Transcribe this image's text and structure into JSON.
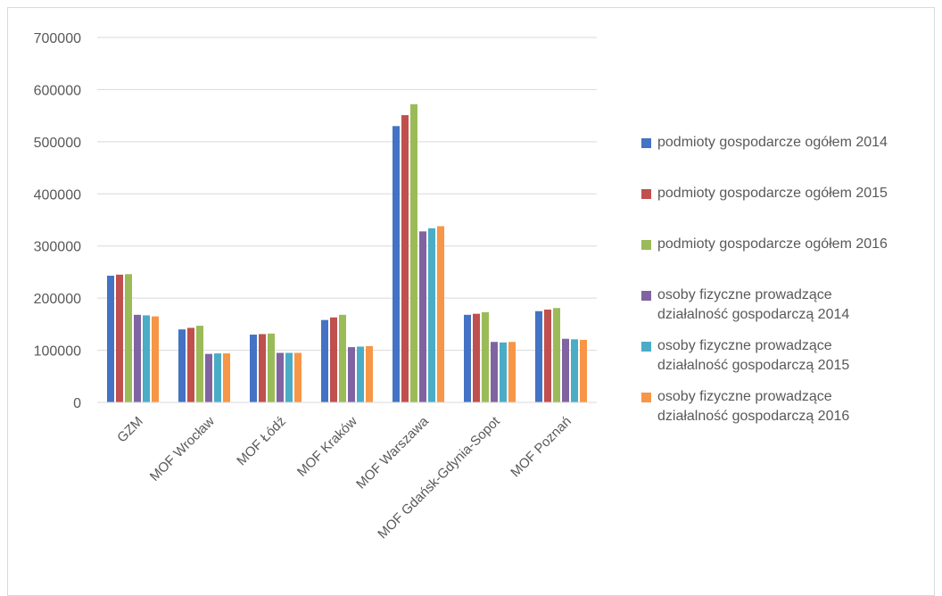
{
  "chart_data": {
    "type": "bar",
    "title": "",
    "xlabel": "",
    "ylabel": "",
    "ylim": [
      0,
      700000
    ],
    "yticks": [
      0,
      100000,
      200000,
      300000,
      400000,
      500000,
      600000,
      700000
    ],
    "ytick_labels": [
      "0",
      "100000",
      "200000",
      "300000",
      "400000",
      "500000",
      "600000",
      "700000"
    ],
    "grid": "horizontal",
    "legend_position": "right",
    "categories": [
      "GZM",
      "MOF Wrocław",
      "MOF Łódź",
      "MOF Kraków",
      "MOF Warszawa",
      "MOF Gdańsk-Gdynia-Sopot",
      "MOF Poznań"
    ],
    "series": [
      {
        "name": "podmioty gospodarcze ogółem 2014",
        "color": "#4472c4",
        "values": [
          243000,
          140000,
          130000,
          158000,
          530000,
          168000,
          175000
        ]
      },
      {
        "name": "podmioty gospodarcze ogółem 2015",
        "color": "#c0504d",
        "values": [
          245000,
          143000,
          131000,
          163000,
          551000,
          170000,
          178000
        ]
      },
      {
        "name": "podmioty gospodarcze ogółem 2016",
        "color": "#9bbb59",
        "values": [
          246000,
          147000,
          132000,
          168000,
          572000,
          173000,
          181000
        ]
      },
      {
        "name": "osoby fizyczne prowadzące działalność gospodarczą  2014",
        "color": "#8064a2",
        "values": [
          168000,
          93000,
          95000,
          106000,
          328000,
          116000,
          122000
        ]
      },
      {
        "name": "osoby fizyczne prowadzące działalność gospodarczą  2015",
        "color": "#4bacc6",
        "values": [
          167000,
          94000,
          95000,
          107000,
          334000,
          115000,
          121000
        ]
      },
      {
        "name": "osoby fizyczne prowadzące działalność gospodarczą  2016",
        "color": "#f79646",
        "values": [
          165000,
          94000,
          95000,
          108000,
          338000,
          116000,
          120000
        ]
      }
    ]
  }
}
